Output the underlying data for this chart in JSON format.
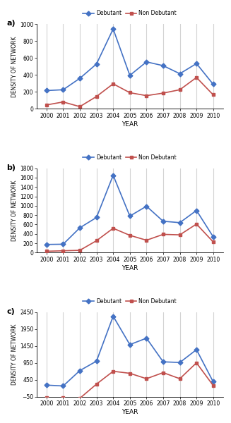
{
  "years": [
    2000,
    2001,
    2002,
    2003,
    2004,
    2005,
    2006,
    2007,
    2008,
    2009,
    2010
  ],
  "panels": [
    {
      "label": "a)",
      "debutant": [
        215,
        225,
        360,
        530,
        945,
        395,
        555,
        510,
        415,
        535,
        290
      ],
      "non_debutant": [
        45,
        80,
        25,
        145,
        295,
        190,
        155,
        185,
        225,
        370,
        165
      ],
      "ylim": [
        0,
        1000
      ],
      "yticks": [
        0,
        200,
        400,
        600,
        800,
        1000
      ]
    },
    {
      "label": "b)",
      "debutant": [
        175,
        180,
        530,
        750,
        1650,
        780,
        990,
        670,
        640,
        900,
        340
      ],
      "non_debutant": [
        30,
        40,
        50,
        255,
        520,
        370,
        265,
        390,
        380,
        610,
        230
      ],
      "ylim": [
        0,
        1800
      ],
      "yticks": [
        0,
        200,
        400,
        600,
        800,
        1000,
        1200,
        1400,
        1600,
        1800
      ]
    },
    {
      "label": "c)",
      "debutant": [
        290,
        265,
        720,
        1000,
        2330,
        1490,
        1680,
        980,
        960,
        1340,
        390
      ],
      "non_debutant": [
        -80,
        -80,
        -100,
        320,
        700,
        640,
        480,
        660,
        480,
        950,
        280
      ],
      "ylim": [
        -50,
        2450
      ],
      "yticks": [
        -50,
        450,
        950,
        1450,
        1950,
        2450
      ]
    }
  ],
  "debutant_color": "#4472C4",
  "non_debutant_color": "#C0504D",
  "grid_color": "#D3D3D3",
  "bg_color": "#FFFFFF",
  "debutant_label": "Debutant",
  "non_debutant_label": "Non Debutant",
  "xlabel": "YEAR",
  "ylabel": "DENSITY OF NETWORK",
  "marker_debutant": "D",
  "marker_non_debutant": "s",
  "figsize": [
    3.27,
    6.0
  ],
  "dpi": 100
}
